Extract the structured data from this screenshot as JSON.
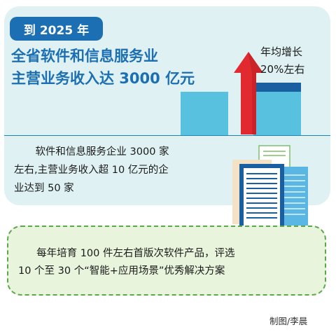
{
  "target": {
    "year_tag": "到 2025 年",
    "headline_line1": "全省软件和信息服务业",
    "headline_line2": "主营业务收入达 3000 亿元",
    "growth_line1": "年均增长",
    "growth_line2": "20%左右"
  },
  "stats": {
    "line1": "软件和信息服务企业 3000 家",
    "line2": "左右,主营业务收入超 10 亿元的企",
    "line3": "业达到 50 家"
  },
  "cultivate": {
    "line1": "每年培育 100 件左右首版次软件产品，评选",
    "line2": "10 个至 30 个“智能+应用场景”优秀解决方案"
  },
  "credit": "制图/李晨",
  "colors": {
    "brand_blue": "#1b6fb2",
    "bar_light": "#59c1e0",
    "arrow_red": "#e02a2f",
    "panel_teal": "#dff1f3",
    "panel_green": "#e8f5dc",
    "green_border": "#5da74a"
  },
  "icons": [
    "up-arrow-icon",
    "document-stack-icon"
  ]
}
